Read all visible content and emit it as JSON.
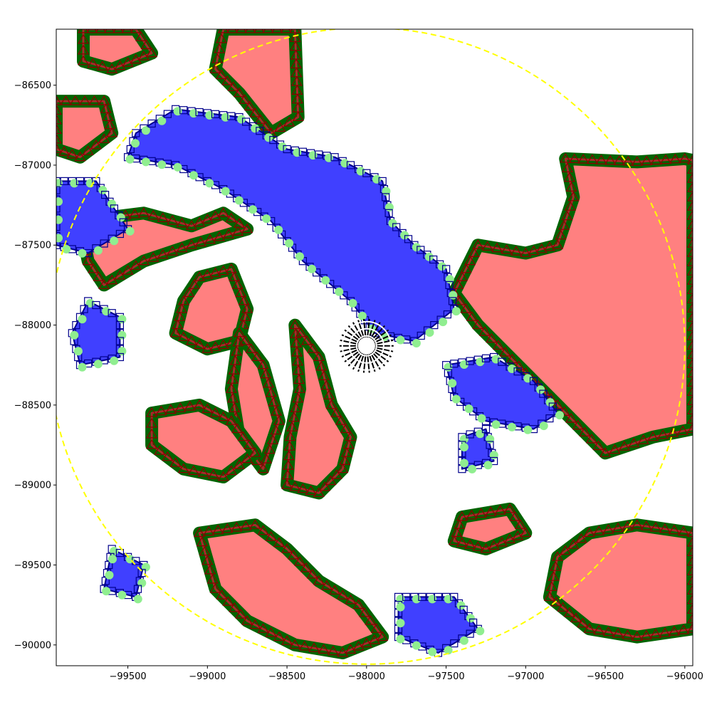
{
  "colors": {
    "red_fill": "#ff8080",
    "red_edge": "#8b0000",
    "blue_fill": "#4040ff",
    "blue_edge": "#00008b",
    "green_edge": "#006400",
    "light_green": "#90ee90",
    "brown_line": "#a52a2a",
    "circle": "#ffff00",
    "labels": "#000000"
  },
  "chart_data": {
    "type": "scatter",
    "title": "",
    "xlabel": "",
    "ylabel": "",
    "xlim": [
      -99950,
      -95950
    ],
    "ylim": [
      -90130,
      -86150
    ],
    "grid": false,
    "x_ticks": [
      {
        "value": -99500,
        "label": "−99500"
      },
      {
        "value": -99000,
        "label": "−99000"
      },
      {
        "value": -98500,
        "label": "−98500"
      },
      {
        "value": -98000,
        "label": "−98000"
      },
      {
        "value": -97500,
        "label": "−97500"
      },
      {
        "value": -97000,
        "label": "−97000"
      },
      {
        "value": -96500,
        "label": "−96500"
      },
      {
        "value": -96000,
        "label": "−96000"
      }
    ],
    "y_ticks": [
      {
        "value": -86500,
        "label": "−86500"
      },
      {
        "value": -87000,
        "label": "−87000"
      },
      {
        "value": -87500,
        "label": "−87500"
      },
      {
        "value": -88000,
        "label": "−88000"
      },
      {
        "value": -88500,
        "label": "−88500"
      },
      {
        "value": -89000,
        "label": "−89000"
      },
      {
        "value": -89500,
        "label": "−89500"
      },
      {
        "value": -90000,
        "label": "−90000"
      }
    ],
    "boundary_circle": {
      "cx": -98000,
      "cy": -88130,
      "r": 2000,
      "style": "dashed",
      "color": "#ffff00"
    },
    "red_regions": [
      {
        "name": "",
        "points": [
          [
            -99780,
            -86150
          ],
          [
            -99450,
            -86150
          ],
          [
            -99350,
            -86300
          ],
          [
            -99600,
            -86400
          ],
          [
            -99780,
            -86350
          ]
        ]
      },
      {
        "name": "",
        "points": [
          [
            -98900,
            -86150
          ],
          [
            -98450,
            -86150
          ],
          [
            -98430,
            -86700
          ],
          [
            -98600,
            -86800
          ],
          [
            -98800,
            -86550
          ],
          [
            -98950,
            -86400
          ]
        ]
      },
      {
        "name": "",
        "points": [
          [
            -99950,
            -86600
          ],
          [
            -99650,
            -86600
          ],
          [
            -99600,
            -86800
          ],
          [
            -99800,
            -86950
          ],
          [
            -99950,
            -86900
          ]
        ]
      },
      {
        "name": "",
        "points": [
          [
            -96750,
            -86960
          ],
          [
            -96300,
            -86980
          ],
          [
            -96000,
            -86960
          ],
          [
            -95950,
            -86970
          ],
          [
            -95950,
            -88650
          ],
          [
            -96200,
            -88700
          ],
          [
            -96500,
            -88800
          ],
          [
            -96800,
            -88500
          ],
          [
            -97000,
            -88300
          ],
          [
            -97300,
            -88000
          ],
          [
            -97450,
            -87800
          ],
          [
            -97300,
            -87500
          ],
          [
            -97000,
            -87550
          ],
          [
            -96800,
            -87500
          ],
          [
            -96700,
            -87200
          ]
        ]
      },
      {
        "name": "",
        "points": [
          [
            -99800,
            -87350
          ],
          [
            -99400,
            -87300
          ],
          [
            -99100,
            -87380
          ],
          [
            -98900,
            -87300
          ],
          [
            -98750,
            -87400
          ],
          [
            -99100,
            -87500
          ],
          [
            -99400,
            -87600
          ],
          [
            -99650,
            -87750
          ],
          [
            -99750,
            -87600
          ]
        ]
      },
      {
        "name": "",
        "points": [
          [
            -99050,
            -87700
          ],
          [
            -98850,
            -87650
          ],
          [
            -98750,
            -87900
          ],
          [
            -98800,
            -88100
          ],
          [
            -99000,
            -88150
          ],
          [
            -99200,
            -88050
          ],
          [
            -99150,
            -87850
          ]
        ]
      },
      {
        "name": "",
        "points": [
          [
            -98450,
            -88000
          ],
          [
            -98300,
            -88200
          ],
          [
            -98220,
            -88500
          ],
          [
            -98100,
            -88700
          ],
          [
            -98150,
            -88900
          ],
          [
            -98300,
            -89050
          ],
          [
            -98500,
            -89000
          ],
          [
            -98480,
            -88700
          ],
          [
            -98420,
            -88400
          ]
        ]
      },
      {
        "name": "",
        "points": [
          [
            -98800,
            -88050
          ],
          [
            -98650,
            -88250
          ],
          [
            -98550,
            -88600
          ],
          [
            -98650,
            -88900
          ],
          [
            -98800,
            -88700
          ],
          [
            -98850,
            -88400
          ]
        ]
      },
      {
        "name": "",
        "points": [
          [
            -99350,
            -88550
          ],
          [
            -99050,
            -88500
          ],
          [
            -98850,
            -88600
          ],
          [
            -98700,
            -88800
          ],
          [
            -98900,
            -88950
          ],
          [
            -99150,
            -88900
          ],
          [
            -99350,
            -88750
          ]
        ]
      },
      {
        "name": "",
        "points": [
          [
            -99050,
            -89300
          ],
          [
            -98700,
            -89250
          ],
          [
            -98500,
            -89400
          ],
          [
            -98300,
            -89600
          ],
          [
            -98050,
            -89750
          ],
          [
            -97900,
            -89950
          ],
          [
            -98150,
            -90050
          ],
          [
            -98450,
            -90000
          ],
          [
            -98750,
            -89850
          ],
          [
            -98950,
            -89650
          ]
        ]
      },
      {
        "name": "",
        "points": [
          [
            -96600,
            -89300
          ],
          [
            -96300,
            -89250
          ],
          [
            -95950,
            -89300
          ],
          [
            -95950,
            -89900
          ],
          [
            -96300,
            -89950
          ],
          [
            -96600,
            -89900
          ],
          [
            -96850,
            -89700
          ],
          [
            -96800,
            -89450
          ]
        ]
      },
      {
        "name": "",
        "points": [
          [
            -97400,
            -89200
          ],
          [
            -97100,
            -89150
          ],
          [
            -97000,
            -89300
          ],
          [
            -97250,
            -89400
          ],
          [
            -97450,
            -89350
          ]
        ]
      }
    ],
    "blue_regions": [
      {
        "name": "",
        "points": [
          [
            -99200,
            -86650
          ],
          [
            -98800,
            -86700
          ],
          [
            -98500,
            -86900
          ],
          [
            -98200,
            -86950
          ],
          [
            -97900,
            -87100
          ],
          [
            -97850,
            -87350
          ],
          [
            -97700,
            -87500
          ],
          [
            -97500,
            -87650
          ],
          [
            -97450,
            -87900
          ],
          [
            -97700,
            -88100
          ],
          [
            -97950,
            -88050
          ],
          [
            -98100,
            -87850
          ],
          [
            -98400,
            -87600
          ],
          [
            -98600,
            -87350
          ],
          [
            -98900,
            -87150
          ],
          [
            -99200,
            -87000
          ],
          [
            -99500,
            -86950
          ],
          [
            -99450,
            -86800
          ]
        ]
      },
      {
        "name": "",
        "points": [
          [
            -99950,
            -87100
          ],
          [
            -99700,
            -87100
          ],
          [
            -99500,
            -87400
          ],
          [
            -99750,
            -87550
          ],
          [
            -99950,
            -87500
          ]
        ]
      },
      {
        "name": "",
        "points": [
          [
            -99750,
            -87850
          ],
          [
            -99550,
            -87950
          ],
          [
            -99550,
            -88200
          ],
          [
            -99800,
            -88250
          ],
          [
            -99850,
            -88050
          ]
        ]
      },
      {
        "name": "",
        "points": [
          [
            -97500,
            -88250
          ],
          [
            -97200,
            -88200
          ],
          [
            -96950,
            -88350
          ],
          [
            -96800,
            -88550
          ],
          [
            -96950,
            -88650
          ],
          [
            -97250,
            -88600
          ],
          [
            -97450,
            -88450
          ]
        ]
      },
      {
        "name": "",
        "points": [
          [
            -97800,
            -89700
          ],
          [
            -97450,
            -89700
          ],
          [
            -97300,
            -89900
          ],
          [
            -97550,
            -90050
          ],
          [
            -97800,
            -89950
          ]
        ]
      },
      {
        "name": "",
        "points": [
          [
            -99600,
            -89400
          ],
          [
            -99400,
            -89500
          ],
          [
            -99450,
            -89700
          ],
          [
            -99650,
            -89650
          ]
        ]
      },
      {
        "name": "",
        "points": [
          [
            -97400,
            -88700
          ],
          [
            -97250,
            -88650
          ],
          [
            -97200,
            -88850
          ],
          [
            -97400,
            -88900
          ]
        ]
      }
    ],
    "center_marker": {
      "x": -98000,
      "y": -88130,
      "label": ""
    }
  }
}
